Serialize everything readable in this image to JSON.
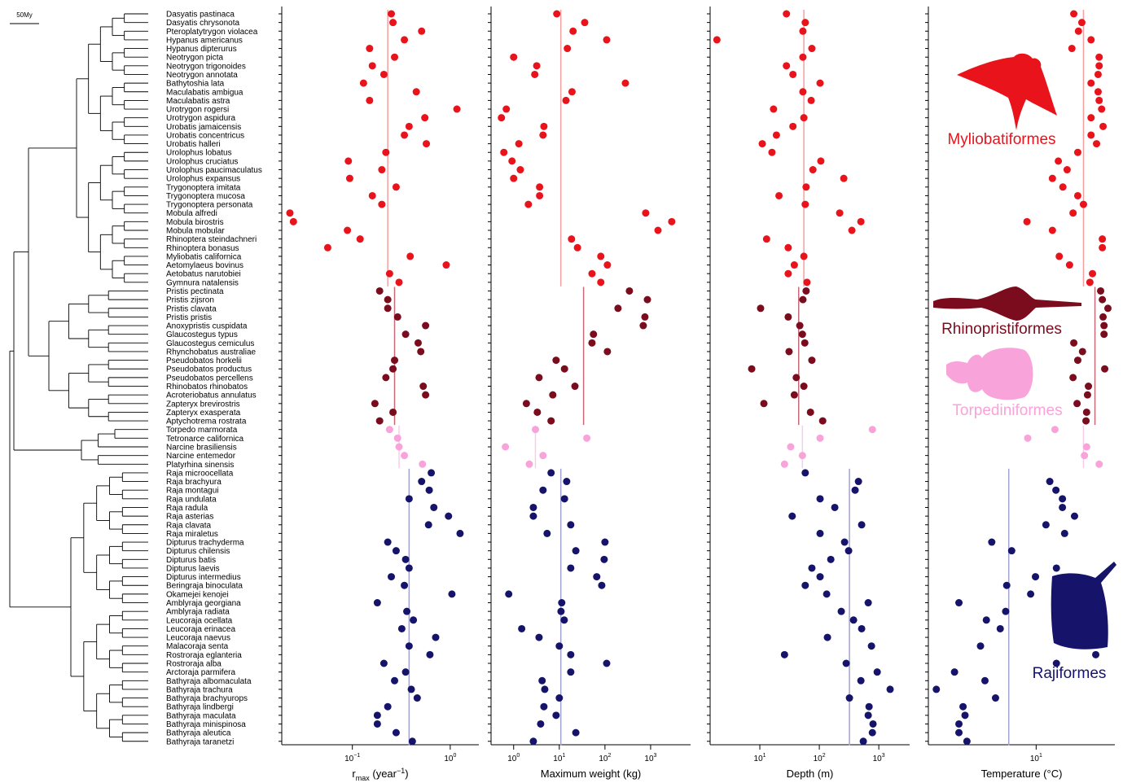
{
  "tree": {
    "scale_label": "50My"
  },
  "species": [
    "Dasyatis pastinaca",
    "Dasyatis chrysonota",
    "Pteroplatytrygon violacea",
    "Hypanus americanus",
    "Hypanus dipterurus",
    "Neotrygon picta",
    "Neotrygon trigonoides",
    "Neotrygon annotata",
    "Bathytoshia lata",
    "Maculabatis ambigua",
    "Maculabatis astra",
    "Urotrygon rogersi",
    "Urotrygon aspidura",
    "Urobatis jamaicensis",
    "Urobatis concentricus",
    "Urobatis halleri",
    "Urolophus lobatus",
    "Urolophus cruciatus",
    "Urolophus paucimaculatus",
    "Urolophus expansus",
    "Trygonoptera imitata",
    "Trygonoptera mucosa",
    "Trygonoptera personata",
    "Mobula alfredi",
    "Mobula birostris",
    "Mobula mobular",
    "Rhinoptera steindachneri",
    "Rhinoptera bonasus",
    "Myliobatis californica",
    "Aetomylaeus bovinus",
    "Aetobatus narutobiei",
    "Gymnura natalensis",
    "Pristis pectinata",
    "Pristis zijsron",
    "Pristis clavata",
    "Pristis pristis",
    "Anoxypristis cuspidata",
    "Glaucostegus typus",
    "Glaucostegus cemiculus",
    "Rhynchobatus australiae",
    "Pseudobatos horkelii",
    "Pseudobatos productus",
    "Pseudobatos percellens",
    "Rhinobatos rhinobatos",
    "Acroteriobatus annulatus",
    "Zapteryx brevirostris",
    "Zapteryx exasperata",
    "Aptychotrema rostrata",
    "Torpedo marmorata",
    "Tetronarce californica",
    "Narcine brasiliensis",
    "Narcine entemedor",
    "Platyrhina sinensis",
    "Raja microocellata",
    "Raja brachyura",
    "Raja montagui",
    "Raja undulata",
    "Raja radula",
    "Raja asterias",
    "Raja clavata",
    "Raja miraletus",
    "Dipturus trachyderma",
    "Dipturus chilensis",
    "Dipturus batis",
    "Dipturus laevis",
    "Dipturus intermedius",
    "Beringraja binoculata",
    "Okamejei kenojei",
    "Amblyraja georgiana",
    "Amblyraja radiata",
    "Leucoraja ocellata",
    "Leucoraja erinacea",
    "Leucoraja naevus",
    "Malacoraja senta",
    "Rostroraja eglanteria",
    "Rostroraja alba",
    "Arctoraja parmifera",
    "Bathyraja albomaculata",
    "Bathyraja trachura",
    "Bathyraja brachyurops",
    "Bathyraja lindbergi",
    "Bathyraja maculata",
    "Bathyraja minispinosa",
    "Bathyraja aleutica",
    "Bathyraja taranetzi"
  ],
  "groups": [
    {
      "name": "Myliobatiformes",
      "color": "#e8131b",
      "mean_color": "#f4a0a0"
    },
    {
      "name": "Rhinopristiformes",
      "color": "#7a0c1e",
      "mean_color": "#c46a78"
    },
    {
      "name": "Torpediniformes",
      "color": "#f8a3da",
      "mean_color": "#f9cdea"
    },
    {
      "name": "Rajiformes",
      "color": "#15146a",
      "mean_color": "#a3a3cf"
    }
  ],
  "chart_data": [
    {
      "type": "scatter",
      "x_label": {
        "base": "r",
        "subscript": "max",
        "text": " (year",
        "superscript": "−1",
        "end": ")"
      },
      "xscale": "log",
      "xlim": [
        0.019,
        1.96
      ],
      "xticks": [
        {
          "value": 0.1,
          "label": "10",
          "exponent": "−1"
        },
        {
          "value": 1,
          "label": "10",
          "exponent": "0"
        }
      ],
      "series": [
        {
          "values": [
            0.25,
            0.26,
            0.51,
            0.34,
            0.15,
            0.27,
            0.16,
            0.21,
            0.13,
            0.45,
            0.15,
            1.17,
            0.55,
            0.38,
            0.34,
            0.57,
            0.22,
            0.091,
            0.2,
            0.094,
            0.28,
            0.16,
            0.2,
            0.023,
            0.025,
            0.089,
            0.12,
            0.056,
            0.39,
            0.91,
            0.24,
            0.3
          ],
          "mean": 0.23
        },
        {
          "values": [
            0.19,
            0.23,
            0.23,
            0.29,
            0.56,
            0.35,
            0.47,
            0.5,
            0.27,
            0.26,
            0.22,
            0.53,
            0.56,
            0.17,
            0.26,
            0.19
          ],
          "mean": 0.27
        },
        {
          "values": [
            0.24,
            0.29,
            0.3,
            0.34,
            0.52
          ],
          "mean": 0.3
        },
        {
          "values": [
            0.64,
            0.51,
            0.61,
            0.38,
            0.68,
            0.96,
            0.6,
            1.26,
            0.23,
            0.28,
            0.35,
            0.38,
            0.25,
            0.34,
            1.04,
            0.18,
            0.36,
            0.42,
            0.32,
            0.71,
            0.38,
            0.62,
            0.21,
            0.35,
            0.27,
            0.4,
            0.46,
            0.23,
            0.18,
            0.18,
            0.28,
            0.41
          ],
          "mean": 0.38
        }
      ]
    },
    {
      "type": "scatter",
      "x_label": "Maximum weight (kg)",
      "xscale": "log",
      "xlim": [
        0.32,
        7500
      ],
      "xticks": [
        {
          "value": 1,
          "label": "10",
          "exponent": "0"
        },
        {
          "value": 10,
          "label": "10",
          "exponent": "1"
        },
        {
          "value": 100,
          "label": "10",
          "exponent": "2"
        },
        {
          "value": 1000,
          "label": "10",
          "exponent": "3"
        }
      ],
      "series": [
        {
          "values": [
            8.8,
            36,
            20,
            109,
            15,
            1.0,
            3.2,
            2.9,
            280,
            19,
            14,
            0.69,
            0.54,
            4.6,
            4.4,
            1.3,
            0.61,
            0.92,
            1.4,
            1.0,
            3.7,
            3.7,
            2.1,
            780,
            2900,
            1450,
            18.5,
            25,
            81,
            113,
            52,
            81
          ],
          "mean": 10.8
        },
        {
          "values": [
            343,
            850,
            193,
            750,
            690,
            56,
            52,
            113,
            8.5,
            13,
            3.6,
            22,
            7.2,
            1.9,
            3.3,
            6.6
          ],
          "mean": 34
        },
        {
          "values": [
            3.0,
            40,
            0.66,
            4.4,
            2.2
          ],
          "mean": 3.0
        },
        {
          "values": [
            6.6,
            14.5,
            4.4,
            13,
            2.7,
            2.7,
            17.8,
            5.4,
            100,
            23,
            96,
            17.8,
            66,
            85,
            0.78,
            11.3,
            10.9,
            12.8,
            1.5,
            3.6,
            10,
            17.8,
            109,
            17.8,
            4.2,
            4.8,
            10,
            4.6,
            8.5,
            3.9,
            23,
            2.7
          ],
          "mean": 10.8
        }
      ]
    },
    {
      "type": "scatter",
      "x_label": "Depth (m)",
      "xscale": "log",
      "xlim": [
        1.46,
        3300
      ],
      "xticks": [
        {
          "value": 10,
          "label": "10",
          "exponent": "1"
        },
        {
          "value": 100,
          "label": "10",
          "exponent": "2"
        },
        {
          "value": 1000,
          "label": "10",
          "exponent": "3"
        }
      ],
      "series": [
        {
          "values": [
            28,
            58,
            53,
            1.9,
            75,
            53,
            28,
            36,
            103,
            53,
            73,
            17,
            55,
            36,
            19,
            11,
            16,
            106,
            78,
            258,
            60,
            21,
            58,
            220,
            500,
            353,
            13,
            30,
            55,
            38,
            30,
            62
          ],
          "mean": 55
        },
        {
          "values": [
            60,
            53,
            10.3,
            30,
            47,
            52,
            57,
            31,
            75,
            7.3,
            41,
            55,
            38,
            11.7,
            71,
            114
          ],
          "mean": 45
        },
        {
          "values": [
            780,
            103,
            33,
            52,
            26
          ],
          "mean": 52
        },
        {
          "values": [
            58,
            455,
            400,
            103,
            182,
            35,
            515,
            103,
            266,
            311,
            156,
            75,
            103,
            58,
            133,
            664,
            234,
            376,
            515,
            137,
            753,
            26,
            283,
            940,
            500,
            1550,
            321,
            686,
            664,
            800,
            780,
            549
          ],
          "mean": 321
        }
      ]
    },
    {
      "type": "scatter",
      "x_label": "Temperature (°C)",
      "xscale": "log",
      "xlim": [
        1.95,
        33
      ],
      "xticks": [
        {
          "value": 10,
          "label": "10",
          "exponent": "1"
        }
      ],
      "series": [
        {
          "values": [
            17.7,
            20,
            19,
            23,
            17.2,
            26,
            26,
            25.6,
            23,
            25.6,
            26,
            27,
            23,
            27.6,
            23,
            25,
            18.8,
            14,
            16,
            12.8,
            15,
            18.8,
            20.5,
            17.5,
            8.7,
            12.8,
            27.3,
            27.3,
            14.2,
            16.6,
            23.5,
            22.6
          ],
          "mean": 20.5
        },
        {
          "values": [
            26.6,
            27.3,
            29.7,
            27.6,
            28,
            28,
            17.7,
            20.2,
            18.8,
            28.3,
            17.5,
            22.1,
            21.8,
            18.6,
            21.5,
            21.3
          ],
          "mean": 24.4
        },
        {
          "values": [
            13.3,
            8.8,
            21.5,
            20.8,
            26
          ],
          "mean": 20.5
        },
        {
          "values": [
            null,
            12.3,
            13.5,
            14.9,
            14.9,
            17.9,
            11.6,
            15.4,
            5.1,
            6.9,
            null,
            13.6,
            9.9,
            6.4,
            9.2,
            3.1,
            6.3,
            4.7,
            5.8,
            13.8,
            4.3,
            24.7,
            13.6,
            2.9,
            4.6,
            2.2,
            5.4,
            3.3,
            3.4,
            3.1,
            3.1,
            3.5
          ],
          "mean": 6.6
        }
      ]
    }
  ]
}
